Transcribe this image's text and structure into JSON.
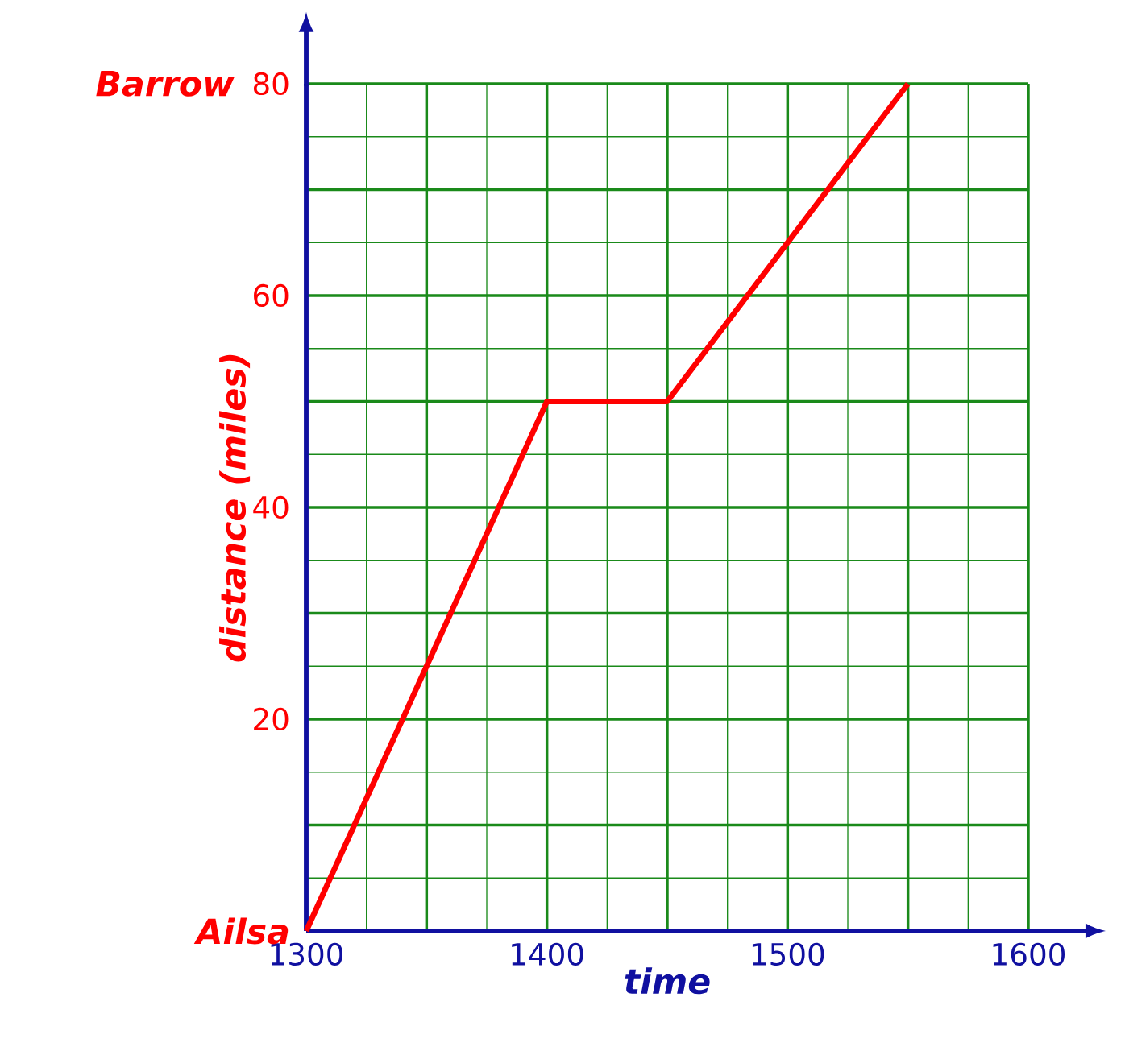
{
  "chart_data": {
    "type": "line",
    "xlabel": "time",
    "ylabel": "distance (miles)",
    "x": [
      1300,
      1400,
      1450,
      1550
    ],
    "series": [
      {
        "color": "#ff0000",
        "values": [
          0,
          50,
          50,
          80
        ]
      }
    ],
    "xlim": [
      1300,
      1600
    ],
    "ylim": [
      0,
      80
    ],
    "xticks": [
      1300,
      {
        "value": 1325,
        "label": null
      },
      {
        "value": 1350,
        "label": null
      },
      {
        "value": 1375,
        "label": null
      },
      1400,
      {
        "value": 1425,
        "label": null
      },
      {
        "value": 1450,
        "label": null
      },
      {
        "value": 1475,
        "label": null
      },
      1500,
      {
        "value": 1525,
        "label": null
      },
      {
        "value": 1550,
        "label": null
      },
      {
        "value": 1575,
        "label": null
      },
      1600
    ],
    "yticks": [
      {
        "value": 0,
        "label": null
      },
      {
        "value": 5,
        "label": null
      },
      {
        "value": 10,
        "label": null
      },
      {
        "value": 15,
        "label": null
      },
      20,
      {
        "value": 25,
        "label": null
      },
      {
        "value": 30,
        "label": null
      },
      {
        "value": 35,
        "label": null
      },
      40,
      {
        "value": 45,
        "label": null
      },
      {
        "value": 50,
        "label": null
      },
      {
        "value": 55,
        "label": null
      },
      60,
      {
        "value": 65,
        "label": null
      },
      {
        "value": 70,
        "label": null
      },
      {
        "value": 75,
        "label": null
      },
      80
    ],
    "grid": true,
    "annotations": [
      "Ailsa",
      "Barrow"
    ]
  }
}
